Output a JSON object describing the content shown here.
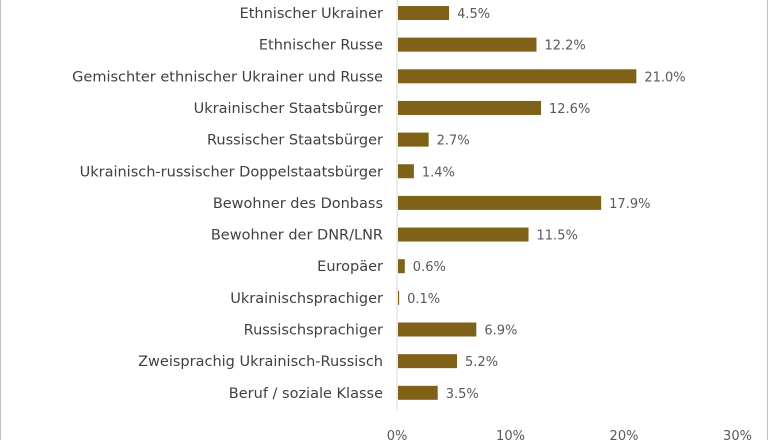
{
  "chart_data": {
    "type": "bar",
    "orientation": "horizontal",
    "categories": [
      "Ethnischer Ukrainer",
      "Ethnischer Russe",
      "Gemischter ethnischer Ukrainer und Russe",
      "Ukrainischer Staatsbürger",
      "Russischer Staatsbürger",
      "Ukrainisch-russischer Doppelstaatsbürger",
      "Bewohner des Donbass",
      "Bewohner der DNR/LNR",
      "Europäer",
      "Ukrainischsprachiger",
      "Russischsprachiger",
      "Zweisprachig Ukrainisch-Russisch",
      "Beruf / soziale Klasse"
    ],
    "values": [
      4.5,
      12.2,
      21.0,
      12.6,
      2.7,
      1.4,
      17.9,
      11.5,
      0.6,
      0.1,
      6.9,
      5.2,
      3.5
    ],
    "value_labels": [
      "4.5%",
      "12.2%",
      "21.0%",
      "12.6%",
      "2.7%",
      "1.4%",
      "17.9%",
      "11.5%",
      "0.6%",
      "0.1%",
      "6.9%",
      "5.2%",
      "3.5%"
    ],
    "x_ticks": [
      "0%",
      "10%",
      "20%",
      "30%"
    ],
    "xlim": [
      0,
      30
    ],
    "bar_color": "#7f6118",
    "grid": false,
    "legend": "none"
  }
}
